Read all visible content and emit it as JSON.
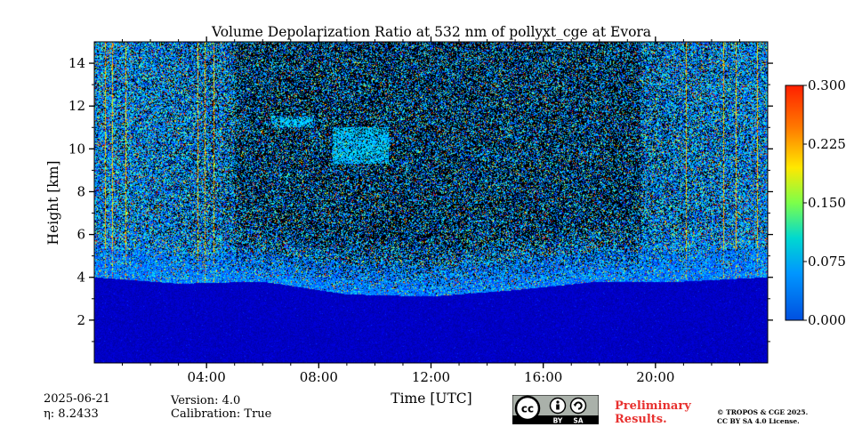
{
  "chart_data": {
    "type": "heatmap",
    "title": "Volume Depolarization Ratio at 532 nm of pollyxt_cge at Evora",
    "xlabel": "Time [UTC]",
    "ylabel": "Height [km]",
    "xlim": [
      0,
      24
    ],
    "ylim": [
      0,
      15
    ],
    "x_ticks": [
      4,
      8,
      12,
      16,
      20
    ],
    "x_tick_labels": [
      "04:00",
      "08:00",
      "12:00",
      "16:00",
      "20:00"
    ],
    "y_ticks": [
      2,
      4,
      6,
      8,
      10,
      12,
      14
    ],
    "y_tick_labels": [
      "2",
      "4",
      "6",
      "8",
      "10",
      "12",
      "14"
    ],
    "colorbar": {
      "range": [
        0.0,
        0.3
      ],
      "ticks": [
        0.0,
        0.075,
        0.15,
        0.225,
        0.3
      ],
      "tick_labels": [
        "0.000",
        "0.075",
        "0.150",
        "0.225",
        "0.300"
      ],
      "colormap": "jet"
    },
    "boundary_layer_top_km": [
      {
        "t": 0,
        "h": 4.6
      },
      {
        "t": 3,
        "h": 4.3
      },
      {
        "t": 6,
        "h": 4.4
      },
      {
        "t": 9,
        "h": 3.8
      },
      {
        "t": 12,
        "h": 3.7
      },
      {
        "t": 15,
        "h": 4.0
      },
      {
        "t": 18,
        "h": 4.4
      },
      {
        "t": 21,
        "h": 4.4
      },
      {
        "t": 24,
        "h": 4.6
      }
    ],
    "boundary_layer_value": 0.02,
    "noise_region_value_range": [
      0.0,
      0.3
    ],
    "aerosol_features": [
      {
        "t_start": 6.3,
        "t_end": 7.8,
        "h_start": 11.0,
        "h_end": 11.5,
        "value": 0.04
      },
      {
        "t_start": 8.5,
        "t_end": 10.5,
        "h_start": 9.3,
        "h_end": 11.0,
        "value": 0.04
      }
    ]
  },
  "footer": {
    "date": "2025-06-21",
    "eta": "η: 8.2433",
    "version": "Version: 4.0",
    "calibration": "Calibration: True",
    "preliminary_line1": "Preliminary",
    "preliminary_line2": "Results.",
    "copyright_line1": "© TROPOS & CGE 2025.",
    "copyright_line2": "CC BY SA 4.0 License.",
    "cc_label": "cc",
    "by_label": "BY",
    "sa_label": "SA"
  },
  "colors": {
    "preliminary": "#e8312f"
  }
}
